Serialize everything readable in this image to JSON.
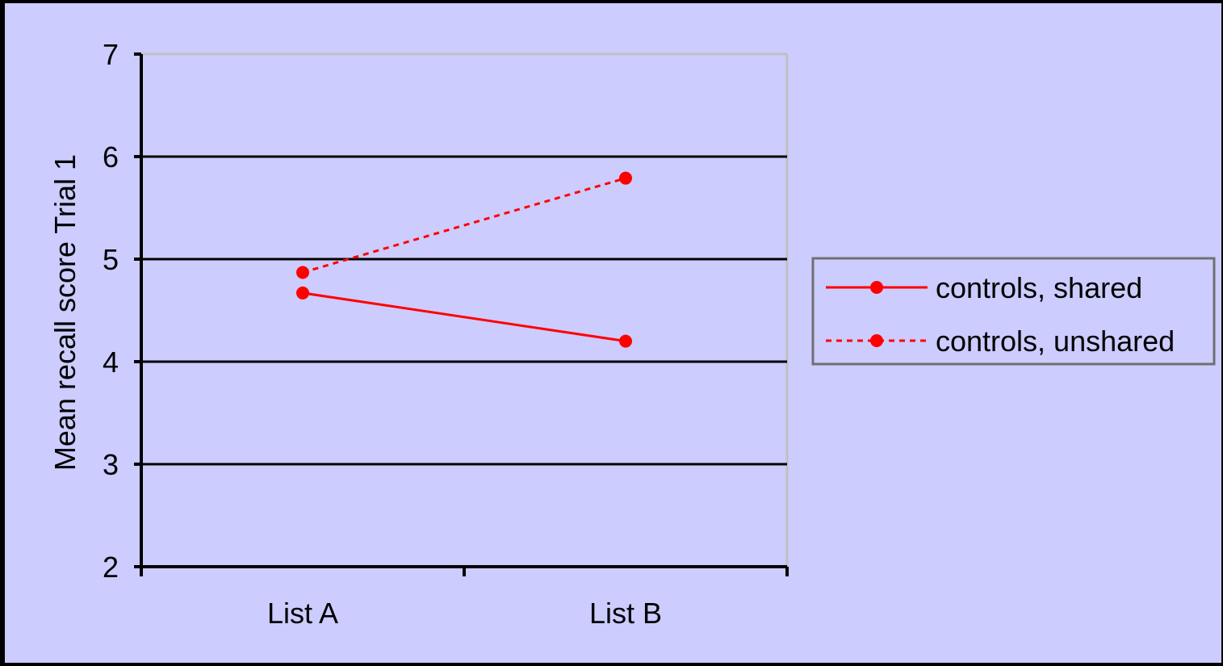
{
  "chart_data": {
    "type": "line",
    "categories": [
      "List A",
      "List B"
    ],
    "series": [
      {
        "name": "controls, shared",
        "values": [
          4.67,
          4.2
        ],
        "line_style": "solid",
        "color": "#ff0000"
      },
      {
        "name": "controls, unshared",
        "values": [
          4.87,
          5.79
        ],
        "line_style": "dotted",
        "color": "#ff0000"
      }
    ],
    "ylabel": "Mean recall score Trial 1",
    "xlabel": "",
    "ylim": [
      2,
      7
    ],
    "yticks": [
      2,
      3,
      4,
      5,
      6,
      7
    ],
    "grid": true,
    "legend_position": "right"
  },
  "colors": {
    "background": "#ccccff",
    "border": "#000000",
    "series": "#ff0000"
  }
}
